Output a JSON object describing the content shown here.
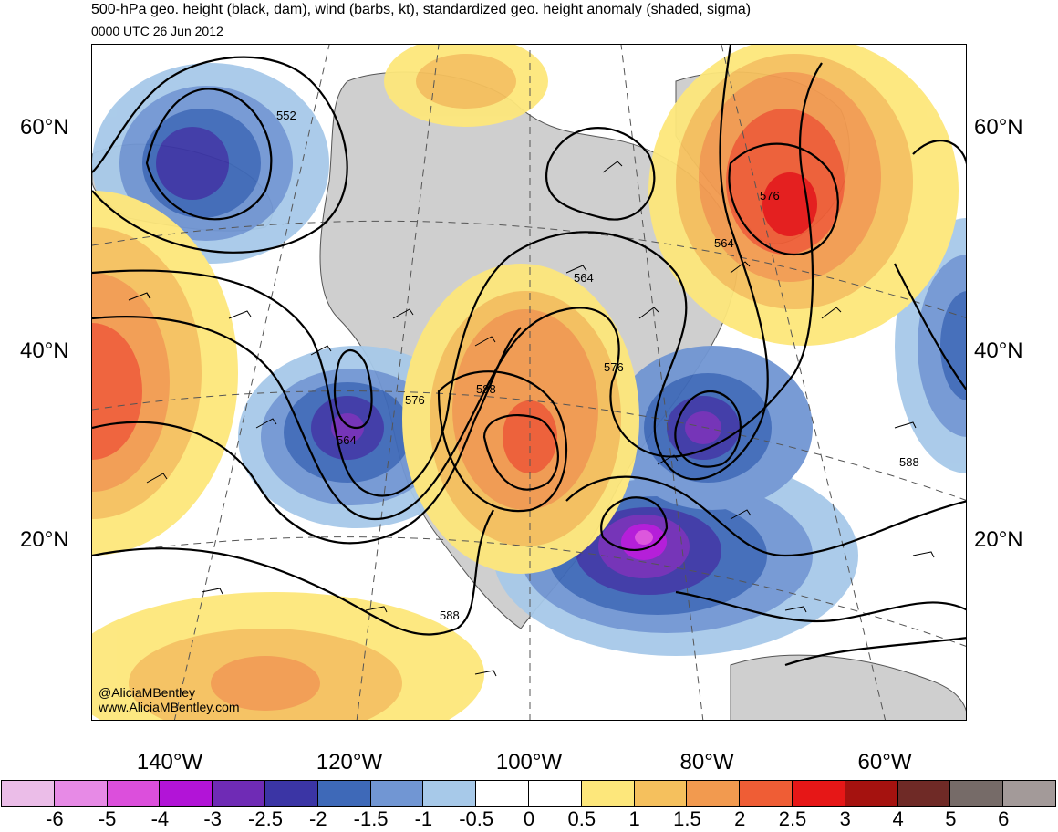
{
  "header": {
    "title": "500-hPa geo. height (black, dam), wind (barbs, kt), standardized geo. height anomaly (shaded, sigma)",
    "subtitle": "0000 UTC 26 Jun 2012"
  },
  "latitude_labels": {
    "n60": "60°N",
    "n40": "40°N",
    "n20": "20°N"
  },
  "longitude_labels": {
    "w140": "140°W",
    "w120": "120°W",
    "w100": "100°W",
    "w80": "80°W",
    "w60": "60°W"
  },
  "contour_labels": [
    "552",
    "564",
    "576",
    "588",
    "564",
    "576",
    "588",
    "576",
    "564",
    "588"
  ],
  "credit": {
    "handle": "@AliciaMBentley",
    "site": "www.AliciaMBentley.com"
  },
  "colorbar": {
    "colors": [
      "#ebbde8",
      "#e78ae6",
      "#dc4fdc",
      "#b214d7",
      "#6f2bb5",
      "#3b35a5",
      "#3e69b8",
      "#7196d3",
      "#a7c9e9",
      "#ffffff",
      "#ffffff",
      "#fde77b",
      "#f5c05d",
      "#f29a4f",
      "#ef5d35",
      "#e61717",
      "#a5120f",
      "#6f2a26",
      "#766b68",
      "#a39a99"
    ],
    "labels": [
      "-6",
      "-5",
      "-4",
      "-3",
      "-2.5",
      "-2",
      "-1.5",
      "-1",
      "-0.5",
      "0",
      "0.5",
      "1",
      "1.5",
      "2",
      "2.5",
      "3",
      "4",
      "5",
      "6"
    ]
  },
  "land_color": "#cfcfcf"
}
